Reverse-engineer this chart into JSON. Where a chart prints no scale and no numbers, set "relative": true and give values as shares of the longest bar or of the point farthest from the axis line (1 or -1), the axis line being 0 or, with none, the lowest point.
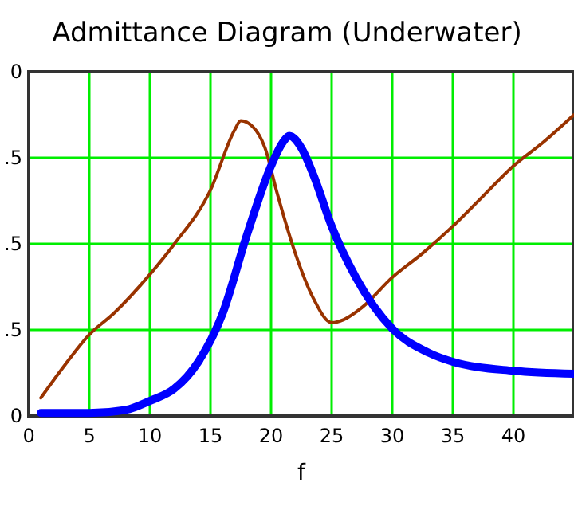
{
  "chart_data": {
    "type": "line",
    "title": "Admittance Diagram (Underwater)",
    "xlabel": "f",
    "xlim": [
      0,
      45
    ],
    "xticks": [
      0,
      5,
      10,
      15,
      20,
      25,
      30,
      35,
      40
    ],
    "relative": true,
    "annotations": [
      "0",
      ".5",
      ".5",
      ".5",
      "0"
    ],
    "grid": true,
    "marker": "none",
    "line_style": "solid",
    "series": [
      {
        "color": "#993300",
        "x": [
          1,
          3,
          5,
          7,
          10,
          12,
          15,
          17,
          17.5,
          18.5,
          19.5,
          20.5,
          22,
          23.5,
          25,
          26,
          27.5,
          30,
          32.5,
          35,
          37.5,
          40,
          42.5,
          45
        ],
        "values": [
          0.06,
          0.17,
          0.27,
          0.34,
          0.47,
          0.57,
          0.75,
          0.95,
          0.98,
          0.96,
          0.89,
          0.74,
          0.54,
          0.39,
          0.31,
          0.32,
          0.36,
          0.46,
          0.54,
          0.63,
          0.73,
          0.83,
          0.91,
          1
        ]
      },
      {
        "color": "#0000ff",
        "x": [
          1,
          5,
          8,
          10,
          12,
          14,
          16,
          18,
          20,
          21,
          21.5,
          22.5,
          23.5,
          25,
          27,
          30,
          33,
          35,
          40,
          45
        ],
        "values": [
          0.01,
          0.01,
          0.02,
          0.05,
          0.09,
          0.18,
          0.34,
          0.6,
          0.83,
          0.91,
          0.93,
          0.89,
          0.8,
          0.63,
          0.46,
          0.29,
          0.21,
          0.18,
          0.15,
          0.14
        ]
      }
    ]
  }
}
